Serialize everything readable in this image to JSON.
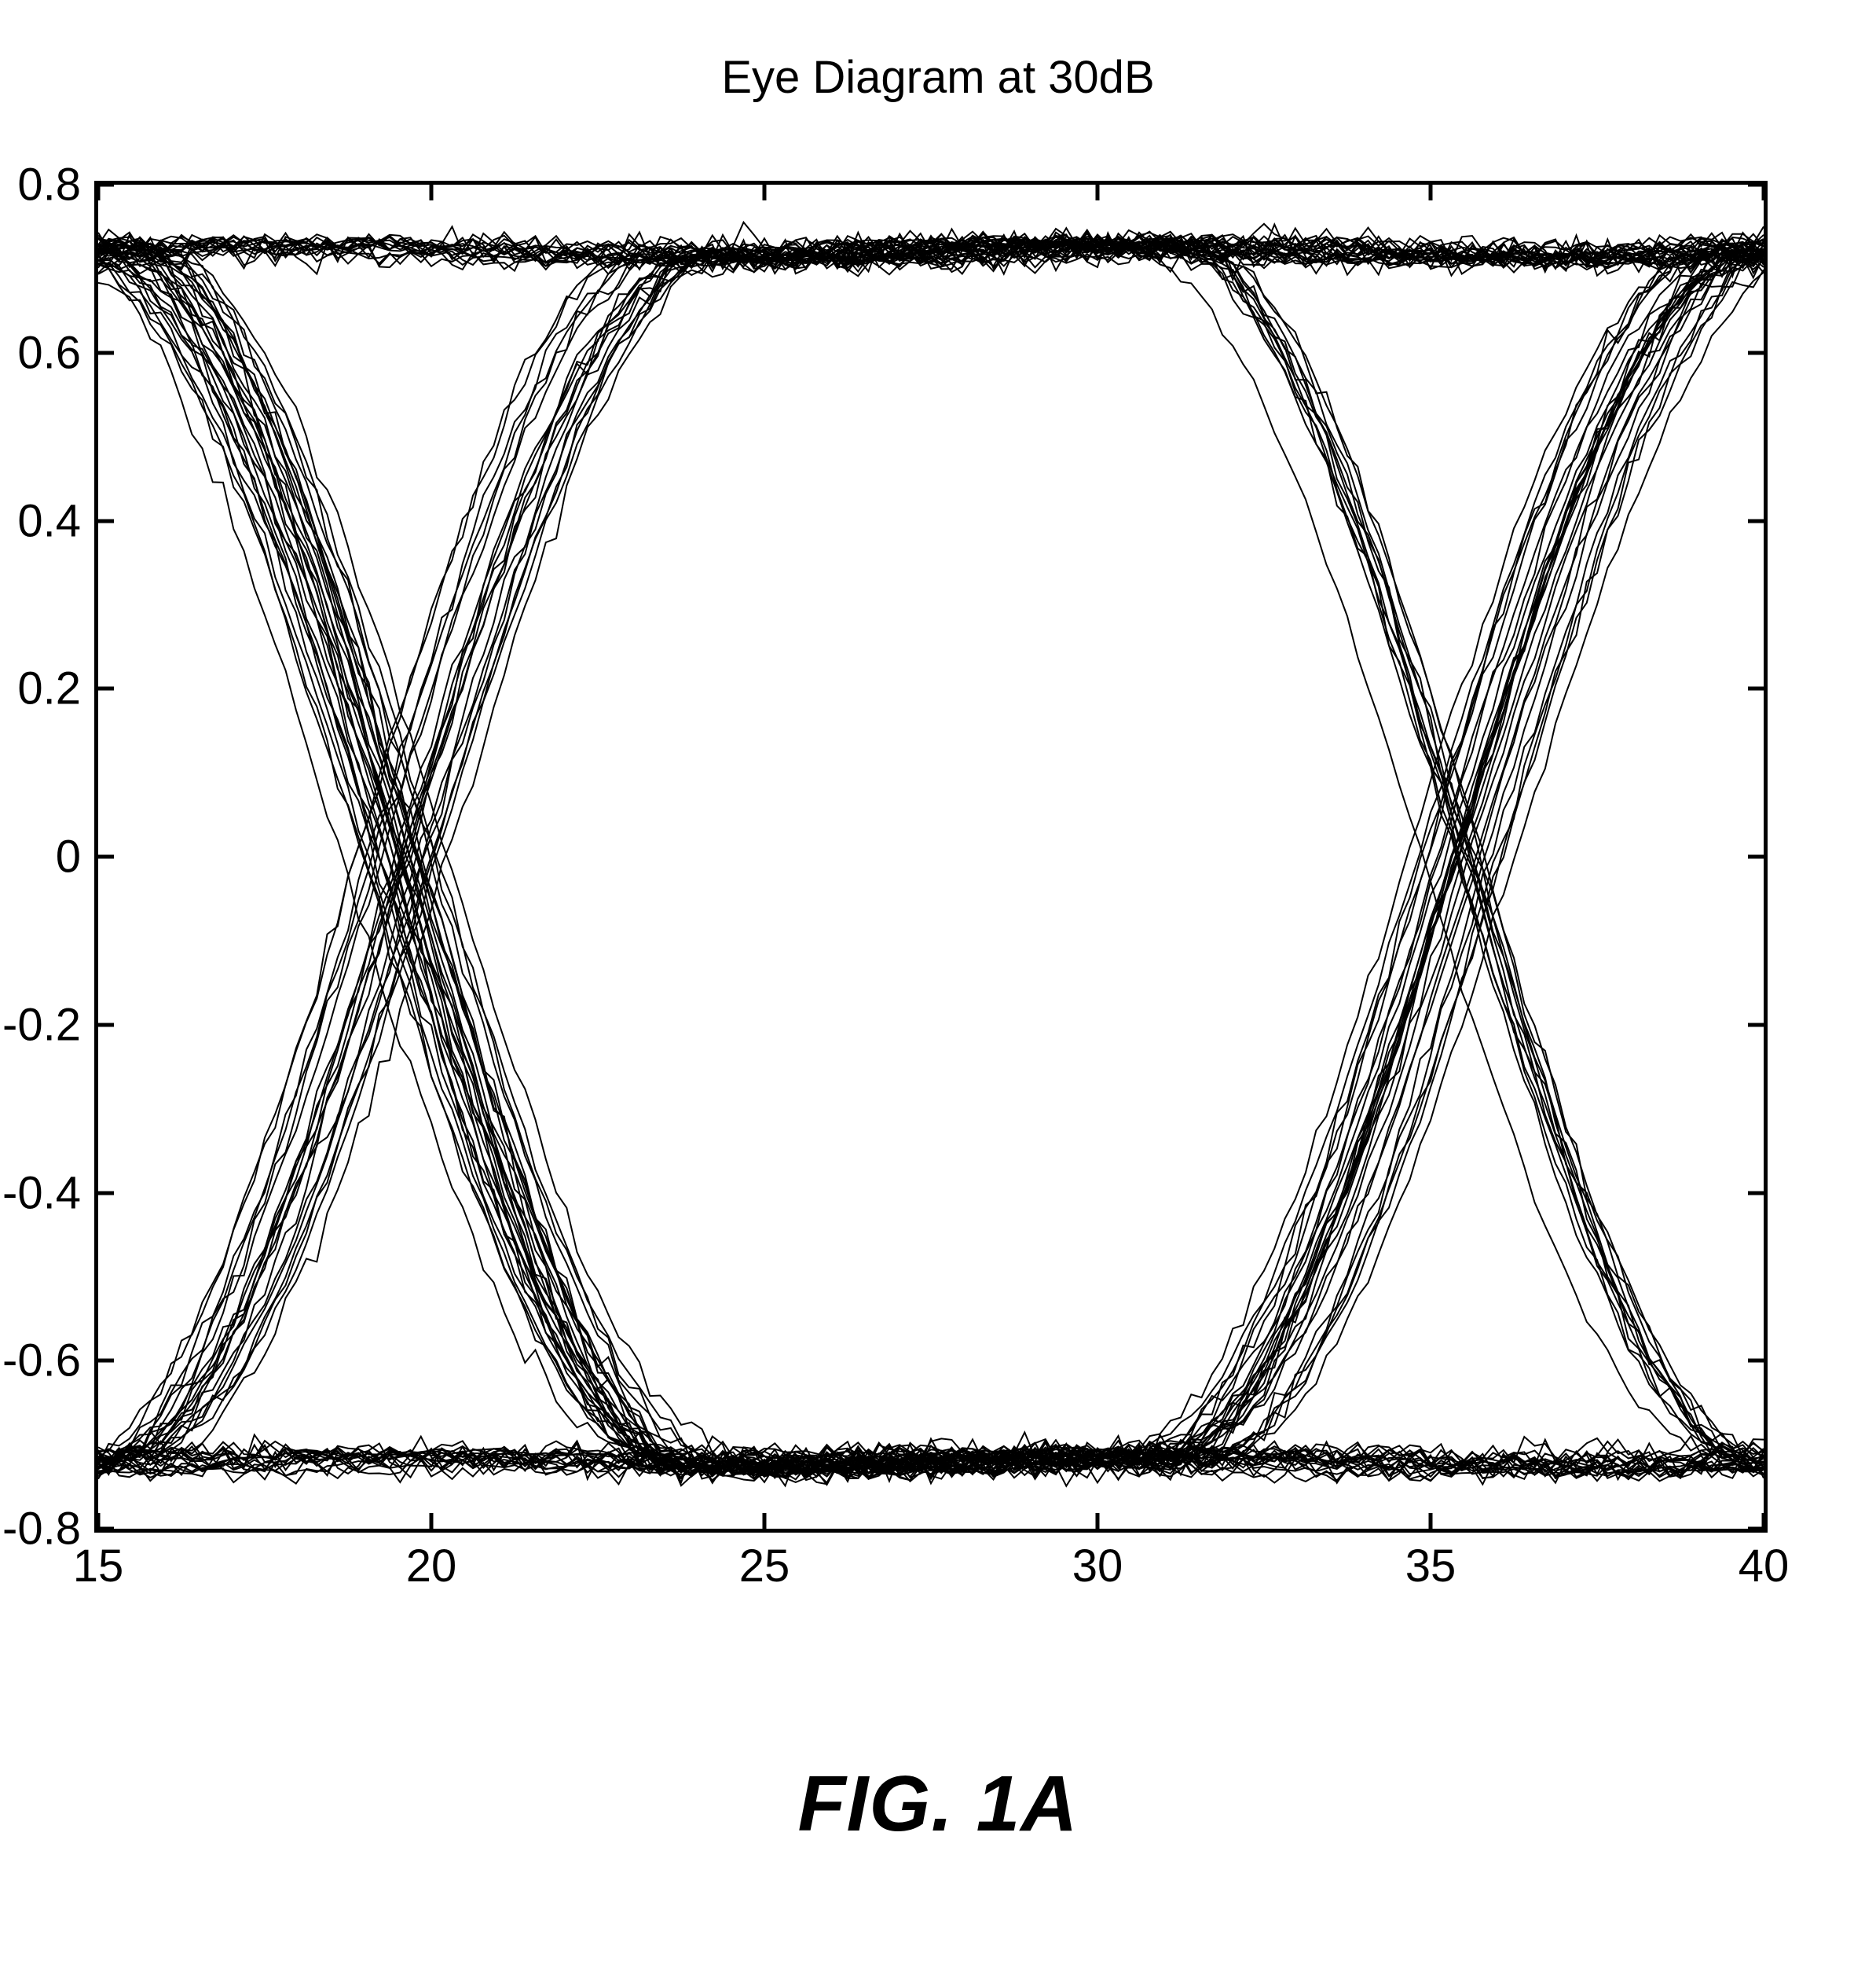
{
  "chart": {
    "type": "eye-diagram",
    "title": "Eye Diagram at 30dB",
    "title_fontsize": 58,
    "figure_label": "FIG. 1A",
    "figure_label_fontsize": 100,
    "xlim": [
      15,
      40
    ],
    "ylim": [
      -0.8,
      0.8
    ],
    "xticks": [
      15,
      20,
      25,
      30,
      35,
      40
    ],
    "yticks": [
      -0.8,
      -0.6,
      -0.4,
      -0.2,
      0,
      0.2,
      0.4,
      0.6,
      0.8
    ],
    "xtick_labels": [
      "15",
      "20",
      "25",
      "30",
      "35",
      "40"
    ],
    "ytick_labels": [
      "-0.8",
      "-0.6",
      "-0.4",
      "-0.2",
      "0",
      "0.2",
      "0.4",
      "0.6",
      "0.8"
    ],
    "tick_fontsize": 58,
    "trace_color": "#000000",
    "trace_width": 2,
    "traces_count": 80,
    "high_level": 0.72,
    "low_level": -0.72,
    "noise_amplitude": 0.06,
    "jitter_x": 0.8,
    "crossing1_x": 19.5,
    "crossing2_x": 35.5,
    "background_color": "#ffffff",
    "border_color": "#000000",
    "border_width": 5,
    "tick_length": 20
  }
}
